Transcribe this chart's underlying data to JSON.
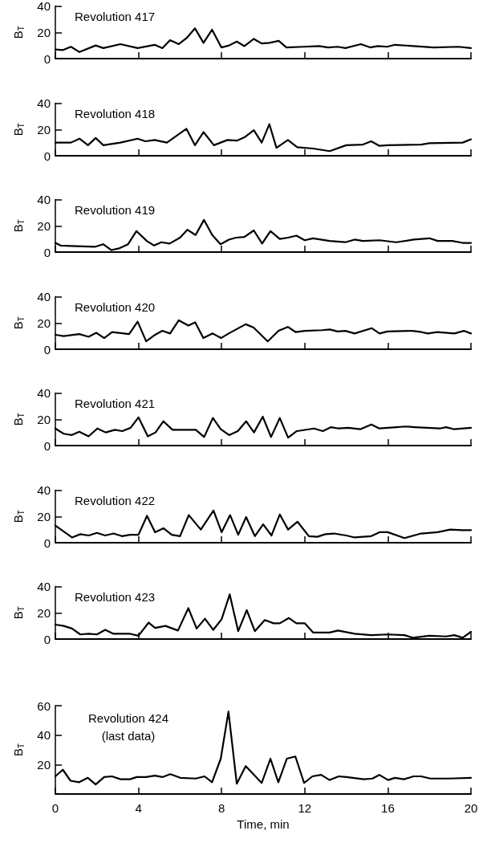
{
  "chart_data": [
    {
      "type": "line",
      "annotations": [
        "Revolution 417"
      ],
      "ylabel": "B$_{T}$",
      "color": "#000000",
      "line_style": "solid",
      "marker": "none",
      "grid": false,
      "legend": false,
      "tick_labels": "y",
      "xlim": [
        0,
        20
      ],
      "xticks": [
        0,
        4,
        8,
        12,
        16,
        20
      ],
      "ylim": [
        0,
        40
      ],
      "yticks": [
        0,
        20,
        40
      ],
      "x": [
        0,
        0.37,
        0.75,
        1.16,
        1.94,
        2.31,
        3.13,
        3.96,
        4.78,
        5.15,
        5.52,
        5.94,
        6.34,
        6.72,
        7.13,
        7.54,
        7.99,
        8.36,
        8.73,
        9.1,
        9.55,
        9.93,
        10.3,
        10.75,
        11.12,
        11.94,
        12.69,
        13.13,
        13.58,
        13.96,
        14.7,
        15.15,
        15.52,
        15.97,
        16.34,
        18.21,
        19.4,
        20
      ],
      "values": [
        7,
        6.5,
        9,
        5,
        10,
        8,
        11,
        8,
        10.5,
        8,
        14,
        11,
        16,
        23,
        12,
        22,
        8.5,
        10,
        13,
        9.5,
        15,
        11.5,
        12,
        13.5,
        8.5,
        9,
        9.5,
        8.5,
        9,
        8,
        11,
        8.5,
        9.5,
        9,
        10.5,
        8.5,
        9,
        8
      ]
    },
    {
      "type": "line",
      "annotations": [
        "Revolution 418"
      ],
      "ylabel": "B$_{T}$",
      "color": "#000000",
      "line_style": "solid",
      "marker": "none",
      "grid": false,
      "legend": false,
      "tick_labels": "y",
      "xlim": [
        0,
        20
      ],
      "xticks": [
        0,
        4,
        8,
        12,
        16,
        20
      ],
      "ylim": [
        0,
        40
      ],
      "yticks": [
        0,
        20,
        40
      ],
      "x": [
        0,
        0.75,
        1.16,
        1.57,
        1.94,
        2.31,
        3.13,
        3.96,
        4.33,
        4.78,
        5.37,
        6.31,
        6.72,
        7.13,
        7.63,
        8.28,
        8.73,
        9.1,
        9.55,
        9.93,
        10.3,
        10.64,
        11.19,
        11.64,
        12.4,
        13.2,
        14,
        14.8,
        15.2,
        15.6,
        16,
        17.6,
        18,
        19.6,
        20
      ],
      "values": [
        10,
        10,
        13,
        8,
        13.5,
        8,
        10,
        13,
        11,
        12,
        10,
        20.5,
        8,
        18,
        8,
        12,
        11.5,
        14,
        19.5,
        10,
        24,
        6,
        12,
        6.5,
        5.5,
        3.5,
        8,
        8.5,
        11,
        7.5,
        8,
        8.5,
        9.5,
        10,
        12.5
      ]
    },
    {
      "type": "line",
      "annotations": [
        "Revolution 419"
      ],
      "ylabel": "B$_{T}$",
      "color": "#000000",
      "line_style": "solid",
      "marker": "none",
      "grid": false,
      "legend": false,
      "tick_labels": "y",
      "xlim": [
        0,
        20
      ],
      "xticks": [
        0,
        4,
        8,
        12,
        16,
        20
      ],
      "ylim": [
        0,
        40
      ],
      "yticks": [
        0,
        20,
        40
      ],
      "x": [
        0,
        0.25,
        1,
        1.9,
        2.3,
        2.7,
        3.1,
        3.5,
        3.9,
        4.4,
        4.75,
        5.1,
        5.5,
        6,
        6.35,
        6.75,
        7.15,
        7.55,
        7.95,
        8.35,
        8.7,
        9.1,
        9.55,
        9.95,
        10.35,
        10.8,
        11.2,
        11.6,
        12,
        12.4,
        13.2,
        13.95,
        14.4,
        14.8,
        15.6,
        16.4,
        17.25,
        18,
        18.4,
        19.1,
        19.6,
        20
      ],
      "values": [
        7,
        5,
        4.5,
        4,
        6,
        1.5,
        3,
        6,
        16,
        8.5,
        5,
        7.5,
        6.5,
        11,
        17,
        13,
        24.5,
        13,
        6,
        9.5,
        11,
        11.5,
        16.5,
        6.5,
        16,
        10,
        11,
        12.5,
        9,
        10.5,
        8.5,
        7.5,
        9.5,
        8.5,
        9,
        7.5,
        9.5,
        10.5,
        8.5,
        8.5,
        7,
        7
      ]
    },
    {
      "type": "line",
      "annotations": [
        "Revolution 420"
      ],
      "ylabel": "B$_{T}$",
      "color": "#000000",
      "line_style": "solid",
      "marker": "none",
      "grid": false,
      "legend": false,
      "tick_labels": "y",
      "xlim": [
        0,
        20
      ],
      "xticks": [
        0,
        4,
        8,
        12,
        16,
        20
      ],
      "ylim": [
        0,
        40
      ],
      "yticks": [
        0,
        20,
        40
      ],
      "x": [
        0,
        0.4,
        1.15,
        1.6,
        1.97,
        2.35,
        2.73,
        3.55,
        3.96,
        4.37,
        4.75,
        5.15,
        5.52,
        5.94,
        6.4,
        6.73,
        7.12,
        7.57,
        7.97,
        8.34,
        9.16,
        9.54,
        10.22,
        10.74,
        11.19,
        11.57,
        12.01,
        12.84,
        13.21,
        13.58,
        13.96,
        14.4,
        15.23,
        15.6,
        15.98,
        17.18,
        17.63,
        17.93,
        18.38,
        19.2,
        19.66,
        20
      ],
      "values": [
        11,
        10,
        11.5,
        9.5,
        12.5,
        8.5,
        13,
        11.5,
        21,
        6,
        10.5,
        14,
        12,
        22,
        18,
        20.5,
        8.5,
        12,
        8.5,
        12,
        19,
        16.5,
        6,
        14,
        17,
        13,
        14,
        14.5,
        15,
        13.5,
        14,
        12,
        16,
        12,
        13.5,
        14,
        13,
        12,
        13,
        12,
        14,
        12
      ]
    },
    {
      "type": "line",
      "annotations": [
        "Revolution 421"
      ],
      "ylabel": "B$_{T}$",
      "color": "#000000",
      "line_style": "solid",
      "marker": "none",
      "grid": false,
      "legend": false,
      "tick_labels": "y",
      "xlim": [
        0,
        20
      ],
      "xticks": [
        0,
        4,
        8,
        12,
        16,
        20
      ],
      "ylim": [
        0,
        40
      ],
      "yticks": [
        0,
        20,
        40
      ],
      "x": [
        0,
        0.4,
        0.78,
        1.15,
        1.6,
        2.02,
        2.42,
        2.87,
        3.22,
        3.62,
        4,
        4.45,
        4.82,
        5.2,
        5.64,
        6.76,
        7.16,
        7.58,
        7.96,
        8.36,
        8.78,
        9.18,
        9.56,
        9.98,
        10.38,
        10.8,
        11.2,
        11.62,
        12.45,
        12.87,
        13.27,
        13.64,
        14.09,
        14.69,
        15.21,
        15.59,
        16.41,
        16.86,
        17.3,
        18.5,
        18.8,
        19.17,
        20
      ],
      "values": [
        13,
        9,
        8,
        10.5,
        7,
        13,
        10,
        12,
        11,
        13.5,
        21.5,
        7,
        10,
        18.5,
        12,
        12,
        6.5,
        21,
        12.5,
        8,
        11,
        18.5,
        10,
        22,
        6.5,
        21,
        6,
        11,
        13,
        11,
        14,
        13,
        13.5,
        12.5,
        16,
        13,
        14,
        14.5,
        14,
        13,
        14,
        12.5,
        13.5
      ]
    },
    {
      "type": "line",
      "annotations": [
        "Revolution 422"
      ],
      "ylabel": "B$_{T}$",
      "color": "#000000",
      "line_style": "solid",
      "marker": "none",
      "grid": false,
      "legend": false,
      "tick_labels": "y",
      "xlim": [
        0,
        20
      ],
      "xticks": [
        0,
        4,
        8,
        12,
        16,
        20
      ],
      "ylim": [
        0,
        40
      ],
      "yticks": [
        0,
        20,
        40
      ],
      "x": [
        0,
        0.8,
        1.2,
        1.6,
        2,
        2.4,
        2.8,
        3.2,
        3.6,
        4,
        4.41,
        4.8,
        5.2,
        5.6,
        6,
        6.42,
        7,
        7.61,
        8,
        8.41,
        8.8,
        9.18,
        9.6,
        10,
        10.4,
        10.8,
        11.2,
        11.65,
        12.2,
        12.6,
        13,
        13.4,
        14,
        14.4,
        15.2,
        15.6,
        16,
        16.8,
        17.6,
        18.4,
        19,
        19.6,
        20
      ],
      "values": [
        13,
        4,
        6.5,
        5.5,
        7.5,
        5.5,
        7,
        5,
        6,
        6,
        20.5,
        8,
        11,
        6,
        5,
        21,
        10,
        24.5,
        8,
        21,
        6,
        19.5,
        5,
        14,
        5.5,
        21.5,
        10,
        16,
        5,
        4.5,
        6.5,
        7,
        5.5,
        4,
        5,
        8,
        8,
        3.5,
        7,
        8,
        10,
        9.5,
        9.5
      ]
    },
    {
      "type": "line",
      "annotations": [
        "Revolution 423"
      ],
      "ylabel": "B$_{T}$",
      "color": "#000000",
      "line_style": "solid",
      "marker": "none",
      "grid": false,
      "legend": false,
      "tick_labels": "y",
      "xlim": [
        0,
        20
      ],
      "xticks": [
        0,
        4,
        8,
        12,
        16,
        20
      ],
      "ylim": [
        0,
        40
      ],
      "yticks": [
        0,
        20,
        40
      ],
      "x": [
        0,
        0.4,
        0.8,
        1.2,
        1.6,
        2,
        2.4,
        2.8,
        3.2,
        3.6,
        4,
        4.49,
        4.8,
        5.3,
        5.9,
        6.4,
        6.8,
        7.2,
        7.6,
        8,
        8.39,
        8.8,
        9.21,
        9.6,
        10.08,
        10.5,
        10.8,
        11.24,
        11.6,
        12,
        12.4,
        13.2,
        13.6,
        14.4,
        15.2,
        16,
        16.8,
        17.2,
        18,
        18.8,
        19.2,
        19.6,
        20
      ],
      "values": [
        11,
        10,
        8,
        3.5,
        4,
        3.5,
        7,
        4,
        4,
        4,
        2.5,
        12.5,
        8.5,
        10,
        6.5,
        23.5,
        8,
        15.5,
        7,
        15,
        34,
        6,
        22,
        6,
        14.5,
        12,
        12,
        16,
        12,
        12,
        5,
        5,
        6.5,
        4,
        3,
        3.5,
        3,
        1,
        2.5,
        2,
        3,
        1,
        5.5
      ]
    },
    {
      "type": "line",
      "annotations": [
        "Revolution 424",
        "(last data)"
      ],
      "xlabel": "Time, min",
      "ylabel": "B$_{T}$",
      "color": "#000000",
      "line_style": "solid",
      "marker": "none",
      "grid": false,
      "legend": false,
      "xlim": [
        0,
        20
      ],
      "xticks": [
        0,
        4,
        8,
        12,
        16,
        20
      ],
      "ylim": [
        0,
        60
      ],
      "yticks": [
        20,
        40,
        60
      ],
      "x": [
        0,
        0.36,
        0.73,
        1.15,
        1.56,
        1.94,
        2.35,
        2.72,
        3.14,
        3.59,
        3.92,
        4.37,
        4.79,
        5.15,
        5.53,
        6.01,
        6.76,
        7.18,
        7.54,
        7.96,
        8.33,
        8.73,
        9.16,
        9.93,
        10.35,
        10.73,
        11.14,
        11.55,
        11.97,
        12.37,
        12.79,
        13.2,
        13.64,
        14.01,
        14.84,
        15.26,
        15.59,
        16.01,
        16.34,
        16.78,
        17.23,
        17.6,
        18.05,
        18.95,
        20
      ],
      "values": [
        12,
        16.5,
        9,
        8,
        11,
        6.5,
        11.5,
        12,
        10,
        10,
        11.5,
        11.5,
        12.5,
        11.5,
        13.5,
        11,
        10.5,
        12,
        8,
        24,
        56,
        7,
        19,
        7.5,
        24,
        8,
        24,
        25.5,
        7.5,
        12,
        13,
        9.5,
        12,
        11.5,
        10,
        10.5,
        13,
        9.5,
        11,
        10,
        12,
        12,
        10.5,
        10.5,
        11
      ]
    }
  ]
}
